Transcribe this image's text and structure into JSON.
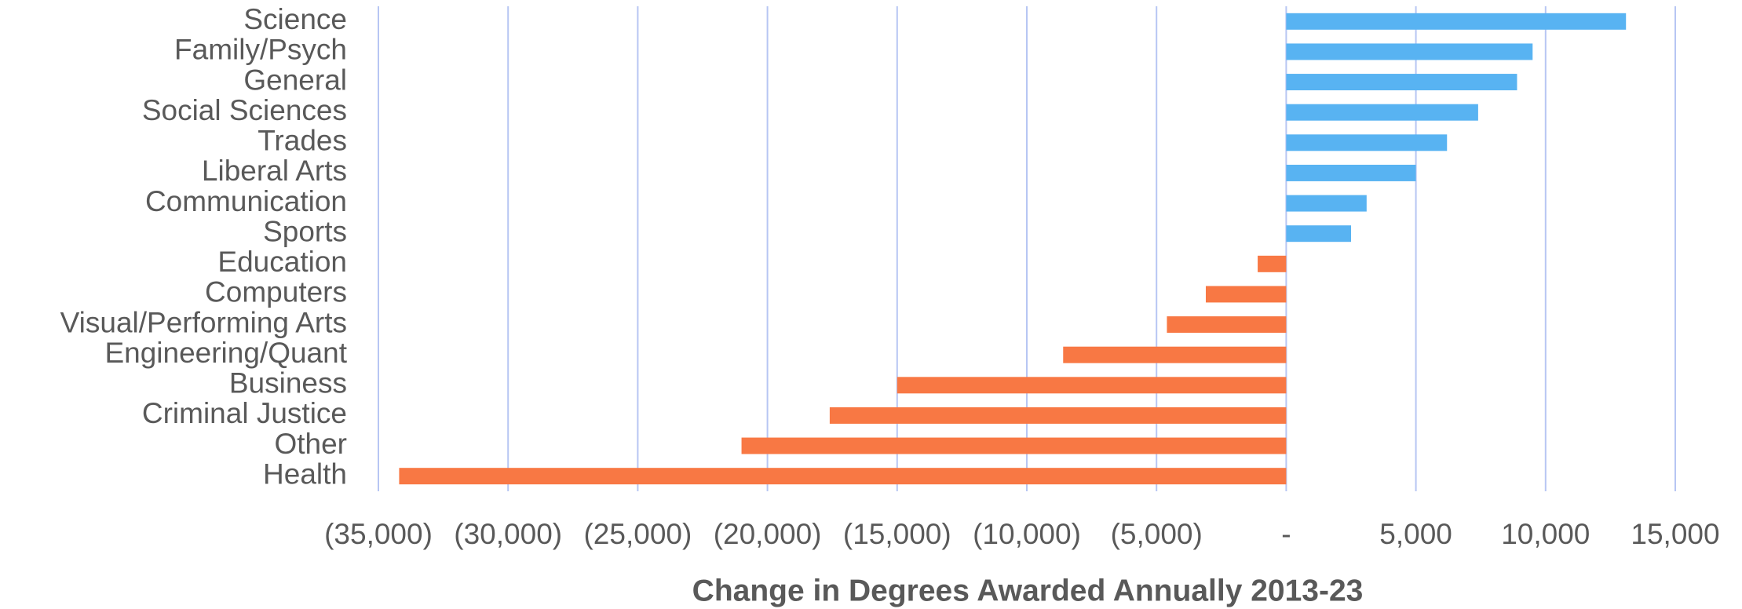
{
  "chart_data": {
    "type": "bar",
    "orientation": "horizontal",
    "xlabel": "Change in Degrees Awarded Annually 2013-23",
    "categories": [
      "Science",
      "Family/Psych",
      "General",
      "Social Sciences",
      "Trades",
      "Liberal Arts",
      "Communication",
      "Sports",
      "Education",
      "Computers",
      "Visual/Performing Arts",
      "Engineering/Quant",
      "Business",
      "Criminal Justice",
      "Other",
      "Health"
    ],
    "values": [
      13100,
      9500,
      8900,
      7400,
      6200,
      5000,
      3100,
      2500,
      -1100,
      -3100,
      -4600,
      -8600,
      -15000,
      -17600,
      -21000,
      -34200
    ],
    "positive_color": "#58b3f2",
    "negative_color": "#f87844",
    "xlim": [
      -35000,
      15000
    ],
    "xticks": [
      {
        "value": -35000,
        "label": "(35,000)"
      },
      {
        "value": -30000,
        "label": "(30,000)"
      },
      {
        "value": -25000,
        "label": "(25,000)"
      },
      {
        "value": -20000,
        "label": "(20,000)"
      },
      {
        "value": -15000,
        "label": "(15,000)"
      },
      {
        "value": -10000,
        "label": "(10,000)"
      },
      {
        "value": -5000,
        "label": "(5,000)"
      },
      {
        "value": 0,
        "label": "-"
      },
      {
        "value": 5000,
        "label": "5,000"
      },
      {
        "value": 10000,
        "label": "10,000"
      },
      {
        "value": 15000,
        "label": "15,000"
      }
    ],
    "grid": true
  }
}
